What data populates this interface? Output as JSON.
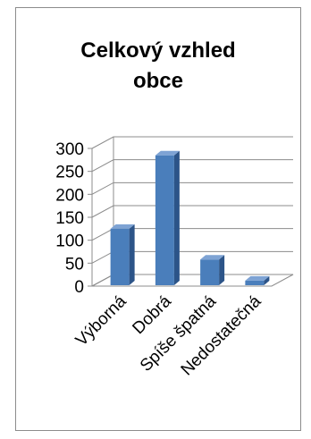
{
  "chart_data": {
    "type": "bar",
    "title": "Celkový vzhled obce",
    "title_lines": [
      "Celkový vzhled",
      "obce"
    ],
    "categories": [
      "Výborná",
      "Dobrá",
      "Spíše špatná",
      "Nedostatečná"
    ],
    "values": [
      125,
      285,
      58,
      12
    ],
    "ylim": [
      0,
      300
    ],
    "yticks": [
      "0",
      "50",
      "100",
      "150",
      "200",
      "250",
      "300"
    ],
    "grid": true,
    "style": "3d-column",
    "bar_color": "#4a7ebb",
    "bar_side_color": "#2c5488",
    "bar_top_color": "#7ea3d4"
  }
}
